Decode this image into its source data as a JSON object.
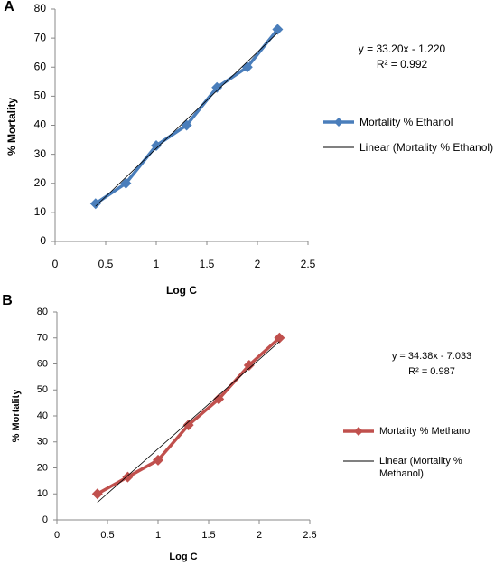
{
  "chart_data": [
    {
      "type": "line",
      "panel_label": "A",
      "x_label": "Log C",
      "y_label": "% Mortality",
      "equation": "y = 33.20x - 1.220",
      "r_squared": "R² = 0.992",
      "series": [
        {
          "name": "Mortality % Ethanol",
          "color": "#4a7ebb",
          "x": [
            0.4,
            0.7,
            1.0,
            1.3,
            1.6,
            1.9,
            2.2
          ],
          "values": [
            13,
            20,
            33,
            40,
            53,
            60,
            73
          ]
        }
      ],
      "trendline": {
        "name": "Linear (Mortality % Ethanol)",
        "color": "#000000",
        "x": [
          0.4,
          2.2
        ],
        "values": [
          12.1,
          71.8
        ]
      },
      "xlim": [
        0,
        2.5
      ],
      "xticks": [
        0,
        0.5,
        1,
        1.5,
        2,
        2.5
      ],
      "ylim": [
        0,
        80
      ],
      "yticks": [
        0,
        10,
        20,
        30,
        40,
        50,
        60,
        70,
        80
      ]
    },
    {
      "type": "line",
      "panel_label": "B",
      "x_label": "Log C",
      "y_label": "% Mortality",
      "equation": "y = 34.38x - 7.033",
      "r_squared": "R² = 0.987",
      "series": [
        {
          "name": "Mortality % Methanol",
          "color": "#c0504d",
          "x": [
            0.4,
            0.7,
            1.0,
            1.3,
            1.6,
            1.9,
            2.2
          ],
          "values": [
            10,
            16.5,
            23,
            36.5,
            46.5,
            59.5,
            70
          ]
        }
      ],
      "trendline": {
        "name": "Linear (Mortality % Methanol)",
        "color": "#000000",
        "x": [
          0.4,
          2.2
        ],
        "values": [
          6.7,
          68.6
        ]
      },
      "xlim": [
        0,
        2.5
      ],
      "xticks": [
        0,
        0.5,
        1,
        1.5,
        2,
        2.5
      ],
      "ylim": [
        0,
        80
      ],
      "yticks": [
        0,
        10,
        20,
        30,
        40,
        50,
        60,
        70,
        80
      ]
    }
  ]
}
